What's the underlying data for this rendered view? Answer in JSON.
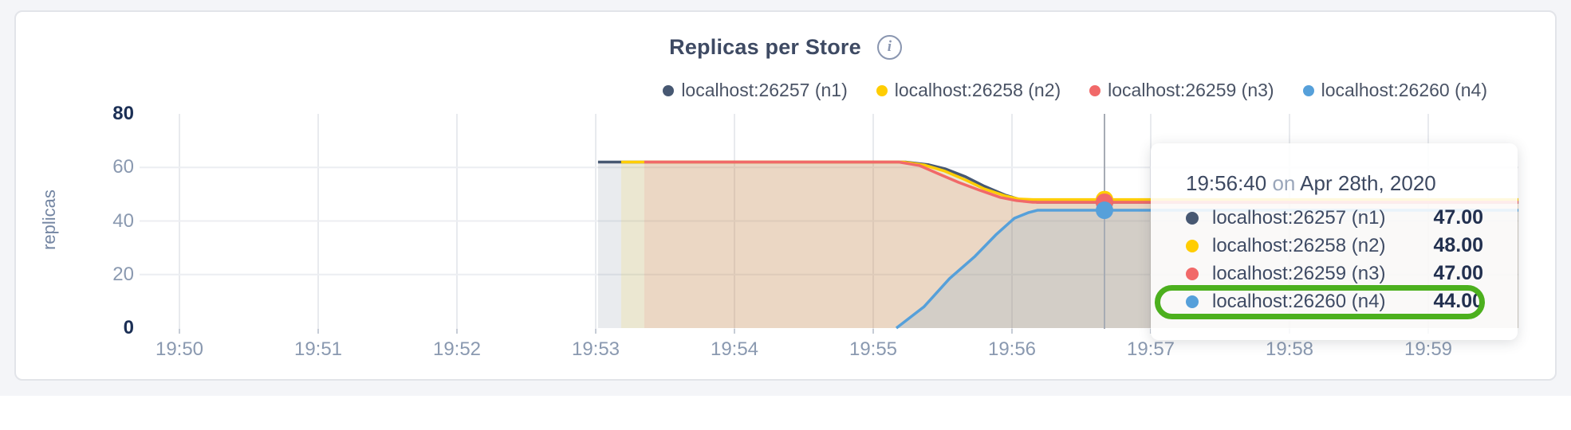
{
  "page": {
    "background": "#f4f5f8",
    "card_background": "#ffffff"
  },
  "header": {
    "title": "Replicas per Store",
    "info_icon_glyph": "i"
  },
  "legend": {
    "items": [
      {
        "label": "localhost:26257 (n1)",
        "color": "#475872"
      },
      {
        "label": "localhost:26258 (n2)",
        "color": "#ffcd02"
      },
      {
        "label": "localhost:26259 (n3)",
        "color": "#f16969"
      },
      {
        "label": "localhost:26260 (n4)",
        "color": "#56a0da"
      }
    ]
  },
  "chart_data": {
    "type": "area",
    "title": "Replicas per Store",
    "ylabel": "replicas",
    "ylim": [
      0,
      80
    ],
    "y_ticks": [
      0,
      20,
      40,
      60,
      80
    ],
    "x_unit": "seconds after 19:50:00",
    "x_ticks": [
      "19:50",
      "19:51",
      "19:52",
      "19:53",
      "19:54",
      "19:55",
      "19:56",
      "19:57",
      "19:58",
      "19:59"
    ],
    "x_tick_interval_sec": 60,
    "grid": true,
    "legend_position": "top-right",
    "series": [
      {
        "name": "localhost:26257 (n1)",
        "color": "#475872",
        "fill_opacity": 0.12,
        "points": [
          [
            181,
            62
          ],
          [
            314,
            62
          ],
          [
            324,
            61
          ],
          [
            331,
            59.5
          ],
          [
            340,
            56.5
          ],
          [
            348,
            53
          ],
          [
            357,
            49.7
          ],
          [
            365,
            47.6
          ],
          [
            371,
            47
          ],
          [
            579,
            47
          ]
        ]
      },
      {
        "name": "localhost:26258 (n2)",
        "color": "#ffcd02",
        "fill_opacity": 0.12,
        "points": [
          [
            191,
            62
          ],
          [
            313,
            62
          ],
          [
            322,
            60.9
          ],
          [
            331,
            58.6
          ],
          [
            340,
            55.3
          ],
          [
            348,
            52
          ],
          [
            357,
            49.4
          ],
          [
            363,
            48.2
          ],
          [
            369,
            48
          ],
          [
            579,
            48
          ]
        ]
      },
      {
        "name": "localhost:26259 (n3)",
        "color": "#f16969",
        "fill_opacity": 0.13,
        "points": [
          [
            201,
            62
          ],
          [
            311,
            62
          ],
          [
            320,
            60.7
          ],
          [
            328,
            57.7
          ],
          [
            337,
            54.4
          ],
          [
            346,
            51.5
          ],
          [
            355,
            48.8
          ],
          [
            362,
            47.6
          ],
          [
            369,
            47
          ],
          [
            579,
            47
          ]
        ]
      },
      {
        "name": "localhost:26260 (n4)",
        "color": "#56a0da",
        "fill_opacity": 0.16,
        "points": [
          [
            310,
            0
          ],
          [
            322,
            8
          ],
          [
            333,
            18.5
          ],
          [
            344,
            26.8
          ],
          [
            353,
            34.8
          ],
          [
            361,
            41
          ],
          [
            367,
            43.1
          ],
          [
            371,
            44
          ],
          [
            579,
            44
          ]
        ]
      }
    ],
    "hover": {
      "time_sec": 400,
      "time_label": "19:56:40",
      "values": [
        47,
        48,
        47,
        44
      ]
    }
  },
  "tooltip": {
    "time": "19:56:40",
    "separator": "on",
    "date": "Apr 28th, 2020",
    "rows": [
      {
        "label": "localhost:26257 (n1)",
        "value": "47.00",
        "color": "#475872",
        "highlighted": false
      },
      {
        "label": "localhost:26258 (n2)",
        "value": "48.00",
        "color": "#ffcd02",
        "highlighted": false
      },
      {
        "label": "localhost:26259 (n3)",
        "value": "47.00",
        "color": "#f16969",
        "highlighted": false
      },
      {
        "label": "localhost:26260 (n4)",
        "value": "44.00",
        "color": "#56a0da",
        "highlighted": true
      }
    ]
  }
}
